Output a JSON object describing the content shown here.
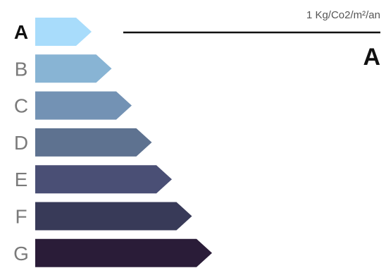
{
  "chart_data": {
    "type": "bar",
    "title": "",
    "categories": [
      "A",
      "B",
      "C",
      "D",
      "E",
      "F",
      "G"
    ],
    "values": [
      1,
      2,
      3,
      4,
      5,
      6,
      7
    ],
    "colors": [
      "#a8dcfb",
      "#88b4d4",
      "#7392b4",
      "#5e7290",
      "#4a4f75",
      "#383a58",
      "#2a1c38"
    ],
    "active_class": "A",
    "unit": "1 Kg/Co2/m²/an",
    "rating": "A"
  }
}
